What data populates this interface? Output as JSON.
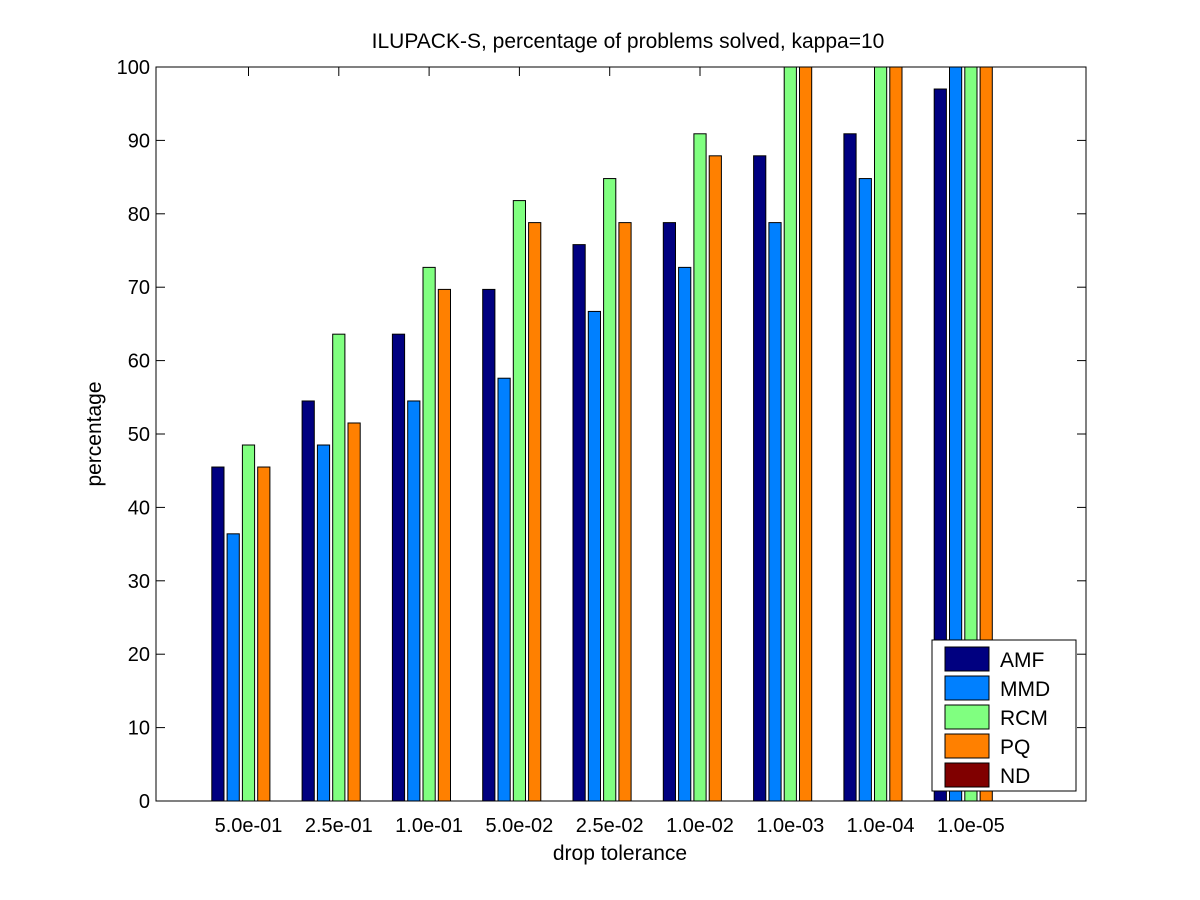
{
  "chart_data": {
    "type": "bar",
    "title": "ILUPACK-S, percentage of problems solved, kappa=10",
    "xlabel": "drop tolerance",
    "ylabel": "percentage",
    "ylim": [
      0,
      100
    ],
    "yticks": [
      0,
      10,
      20,
      30,
      40,
      50,
      60,
      70,
      80,
      90,
      100
    ],
    "categories": [
      "5.0e-01",
      "2.5e-01",
      "1.0e-01",
      "5.0e-02",
      "2.5e-02",
      "1.0e-02",
      "1.0e-03",
      "1.0e-04",
      "1.0e-05"
    ],
    "series": [
      {
        "name": "AMF",
        "color": "#000080",
        "values": [
          45.5,
          54.5,
          63.6,
          69.7,
          75.8,
          78.8,
          87.9,
          90.9,
          97.0
        ]
      },
      {
        "name": "MMD",
        "color": "#0080ff",
        "values": [
          36.4,
          48.5,
          54.5,
          57.6,
          66.7,
          72.7,
          78.8,
          84.8,
          100
        ]
      },
      {
        "name": "RCM",
        "color": "#80ff80",
        "values": [
          48.5,
          63.6,
          72.7,
          81.8,
          84.8,
          90.9,
          100,
          100,
          100
        ]
      },
      {
        "name": "PQ",
        "color": "#ff8000",
        "values": [
          45.5,
          51.5,
          69.7,
          78.8,
          78.8,
          87.9,
          100,
          100,
          100
        ]
      },
      {
        "name": "ND",
        "color": "#800000",
        "values": [
          0,
          0,
          0,
          0,
          0,
          0,
          0,
          0,
          0
        ]
      }
    ],
    "grid": false,
    "legend_position": "bottom-right"
  }
}
